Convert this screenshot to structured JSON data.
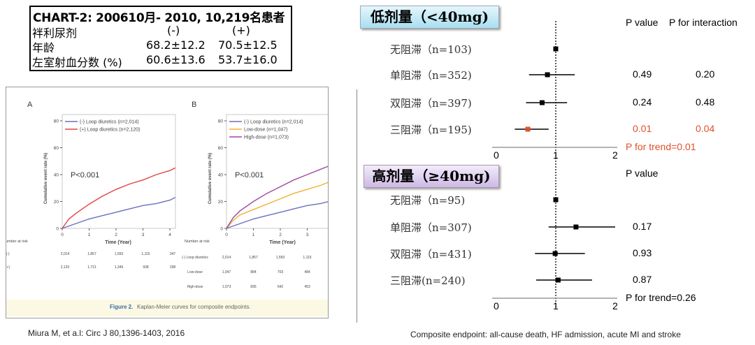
{
  "info_box": {
    "title": "CHART-2: 200610月- 2010, 10,219名患者",
    "rows": [
      {
        "label": "袢利尿剂",
        "neg": "(-)",
        "pos": "(+)"
      },
      {
        "label": "年龄",
        "neg": "68.2±12.2",
        "pos": "70.5±12.5"
      },
      {
        "label": "左室射血分数 (%)",
        "neg": "60.6±13.6",
        "pos": "53.7±16.0"
      }
    ]
  },
  "citation": "Miura M, et a.l: Circ J 80,1396-1403, 2016",
  "footnote": "Composite endpoint: all-cause death, HF admission, acute MI and stroke",
  "colors": {
    "red": "#e0502b",
    "blue_km": "#6c6fc0",
    "red_km": "#e04444",
    "orange_km": "#f0b030",
    "purple_km": "#a04aa0"
  },
  "chart_data": [
    {
      "type": "line",
      "panel": "A",
      "xlabel": "Time (Year)",
      "ylabel": "Cumulative event rate (%)",
      "xlim": [
        0,
        4.2
      ],
      "ylim": [
        0,
        80
      ],
      "xticks": [
        "0",
        "1",
        "2",
        "3",
        "4"
      ],
      "yticks": [
        "0",
        "20",
        "40",
        "60",
        "80"
      ],
      "annotation": "P<0.001",
      "series": [
        {
          "name": "(-) Loop diuretics (n=2,014)",
          "color": "#6c6fc0",
          "x": [
            0,
            0.5,
            1,
            1.5,
            2,
            2.5,
            3,
            3.5,
            4,
            4.2
          ],
          "y": [
            0,
            3.5,
            7,
            9.5,
            12,
            14.5,
            17,
            18.5,
            21,
            23
          ]
        },
        {
          "name": "(+) Loop diuretics (n=2,120)",
          "color": "#e04444",
          "x": [
            0,
            0.25,
            0.5,
            1,
            1.5,
            2,
            2.5,
            3,
            3.5,
            4,
            4.2
          ],
          "y": [
            0,
            7,
            11,
            18,
            24,
            29,
            33,
            36,
            40,
            43,
            45
          ]
        }
      ],
      "risk_table": {
        "title": "Number at risk",
        "rows": [
          {
            "label": "(-)",
            "values": [
              "2,014",
              "1,857",
              "1,550",
              "1,115",
              "347"
            ]
          },
          {
            "label": "(+)",
            "values": [
              "2,120",
              "1,721",
              "1,346",
              "938",
              "298"
            ]
          }
        ]
      }
    },
    {
      "type": "line",
      "panel": "B",
      "xlabel": "Time (Year)",
      "ylabel": "Cumulative event rate (%)",
      "xlim": [
        0,
        4.2
      ],
      "ylim": [
        0,
        80
      ],
      "xticks": [
        "0",
        "1",
        "2",
        "3",
        "4"
      ],
      "yticks": [
        "0",
        "20",
        "40",
        "60",
        "80"
      ],
      "annotation": "P<0.001",
      "series": [
        {
          "name": "(-) Loop diuretics (n=2,014)",
          "color": "#6c6fc0",
          "x": [
            0,
            0.5,
            1,
            1.5,
            2,
            2.5,
            3,
            3.5,
            4,
            4.2
          ],
          "y": [
            0,
            3.5,
            7,
            9.5,
            12,
            14.5,
            17,
            18.5,
            21,
            23
          ]
        },
        {
          "name": "Low-dose (n=1,047)",
          "color": "#f0b030",
          "x": [
            0,
            0.25,
            0.5,
            1,
            1.5,
            2,
            2.5,
            3,
            3.5,
            4,
            4.2
          ],
          "y": [
            0,
            6,
            10,
            14,
            18,
            22,
            26,
            29,
            32,
            36,
            39
          ]
        },
        {
          "name": "High-dose (n=1,073)",
          "color": "#a04aa0",
          "x": [
            0,
            0.25,
            0.5,
            1,
            1.5,
            2,
            2.5,
            3,
            3.5,
            4,
            4.2
          ],
          "y": [
            0,
            8,
            13,
            20,
            26,
            31,
            36,
            40,
            44,
            48,
            50
          ]
        }
      ],
      "risk_table": {
        "title": "Number at risk",
        "rows": [
          {
            "label": "(-) Loop diuretics",
            "values": [
              "2,014",
              "1,857",
              "1,550",
              "1,115",
              "347"
            ]
          },
          {
            "label": "Low-dose",
            "values": [
              "1,047",
              "884",
              "703",
              "484",
              "148"
            ]
          },
          {
            "label": "High-dose",
            "values": [
              "1,073",
              "836",
              "642",
              "453",
              "148"
            ]
          }
        ]
      }
    },
    {
      "type": "scatter",
      "subtype": "forest",
      "title": "低剂量（<40mg)",
      "xlim": [
        0,
        2
      ],
      "xticks": [
        "0",
        "1",
        "2"
      ],
      "reference": 1,
      "headers": [
        "P value",
        "P for interaction"
      ],
      "rows": [
        {
          "label": "无阻滞（n=103)",
          "est": 1.0,
          "lo": null,
          "hi": null,
          "p": "",
          "p_int": "",
          "highlight": false
        },
        {
          "label": "单阻滞（n=352)",
          "est": 0.86,
          "lo": 0.55,
          "hi": 1.32,
          "p": "0.49",
          "p_int": "0.20",
          "highlight": false
        },
        {
          "label": "双阻滞（n=397)",
          "est": 0.77,
          "lo": 0.5,
          "hi": 1.19,
          "p": "0.24",
          "p_int": "0.48",
          "highlight": false
        },
        {
          "label": "三阻滞（n=195)",
          "est": 0.53,
          "lo": 0.31,
          "hi": 0.88,
          "p": "0.01",
          "p_int": "0.04",
          "highlight": true
        }
      ],
      "trend": "P for trend=0.01"
    },
    {
      "type": "scatter",
      "subtype": "forest",
      "title": "高剂量（≥40mg)",
      "xlim": [
        0,
        2
      ],
      "xticks": [
        "0",
        "1",
        "2"
      ],
      "reference": 1,
      "headers": [
        "P value"
      ],
      "rows": [
        {
          "label": "无阻滞（n=95)",
          "est": 1.0,
          "lo": null,
          "hi": null,
          "p": ""
        },
        {
          "label": "单阻滞（n=307)",
          "est": 1.34,
          "lo": 0.88,
          "hi": 2.0,
          "p": "0.17"
        },
        {
          "label": "双阻滞（n=431)",
          "est": 0.99,
          "lo": 0.65,
          "hi": 1.49,
          "p": "0.93"
        },
        {
          "label": "三阻滞(n=240)",
          "est": 1.04,
          "lo": 0.67,
          "hi": 1.61,
          "p": "0.87"
        }
      ],
      "trend": "P for trend=0.26"
    }
  ],
  "figure_caption": {
    "label": "Figure 2.",
    "text": "Kaplan-Meier curves for composite endpoints."
  }
}
